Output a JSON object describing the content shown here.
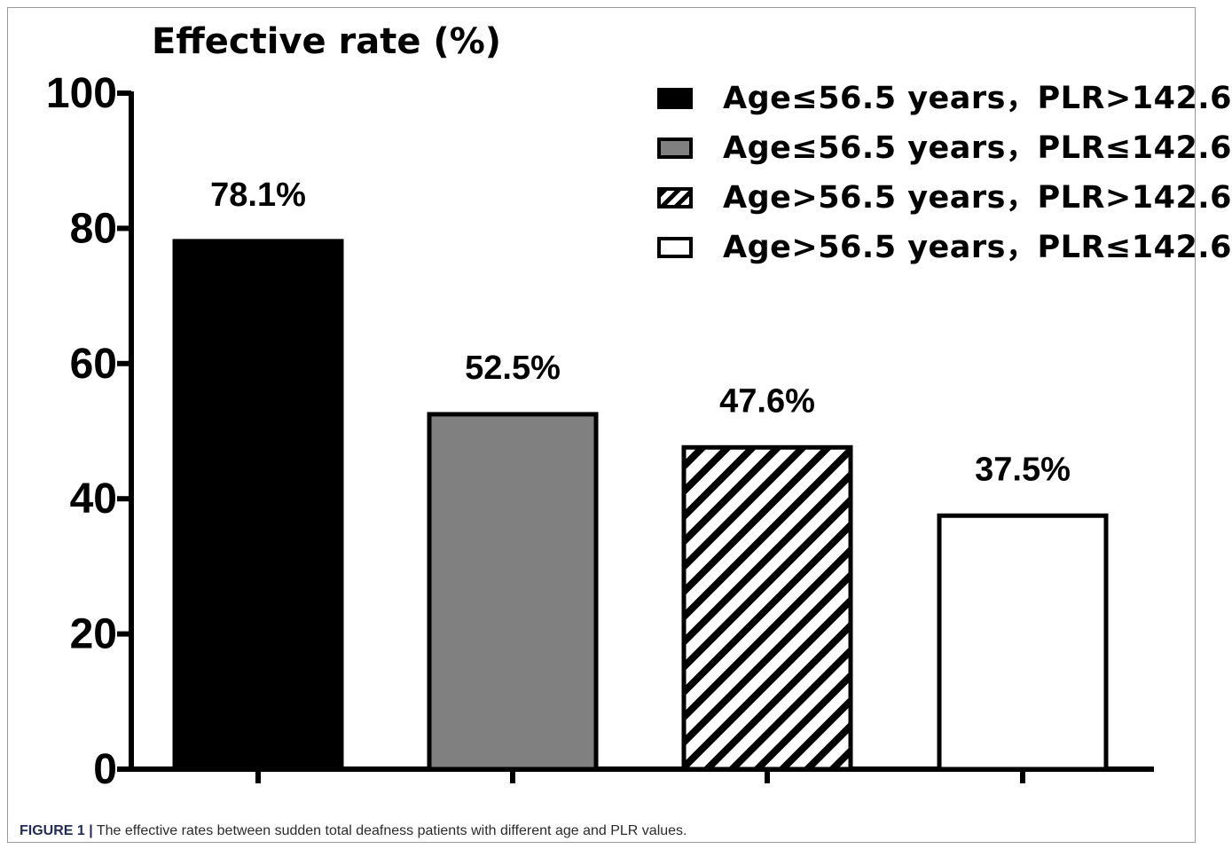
{
  "chart_data": {
    "type": "bar",
    "title": "Effective rate (%)",
    "xlabel": "",
    "ylabel": "",
    "ylim": [
      0,
      100
    ],
    "yticks": [
      0,
      20,
      40,
      60,
      80,
      100
    ],
    "categories": [
      "Age≤56.5 years，PLR>142.6",
      "Age≤56.5 years，PLR≤142.6",
      "Age>56.5 years，PLR>142.6",
      "Age>56.5 years，PLR≤142.6"
    ],
    "values": [
      78.1,
      52.5,
      47.6,
      37.5
    ],
    "data_labels": [
      "78.1%",
      "52.5%",
      "47.6%",
      "37.5%"
    ],
    "fills": [
      "solid-black",
      "solid-gray",
      "diagonal-hatch",
      "white"
    ],
    "colors": [
      "#000000",
      "#808080",
      "#000000",
      "#ffffff"
    ],
    "legend_position": "top-right",
    "grid": false
  },
  "caption": {
    "label": "FIGURE 1 |",
    "text": " The effective rates between sudden total deafness patients with different age and PLR values."
  }
}
